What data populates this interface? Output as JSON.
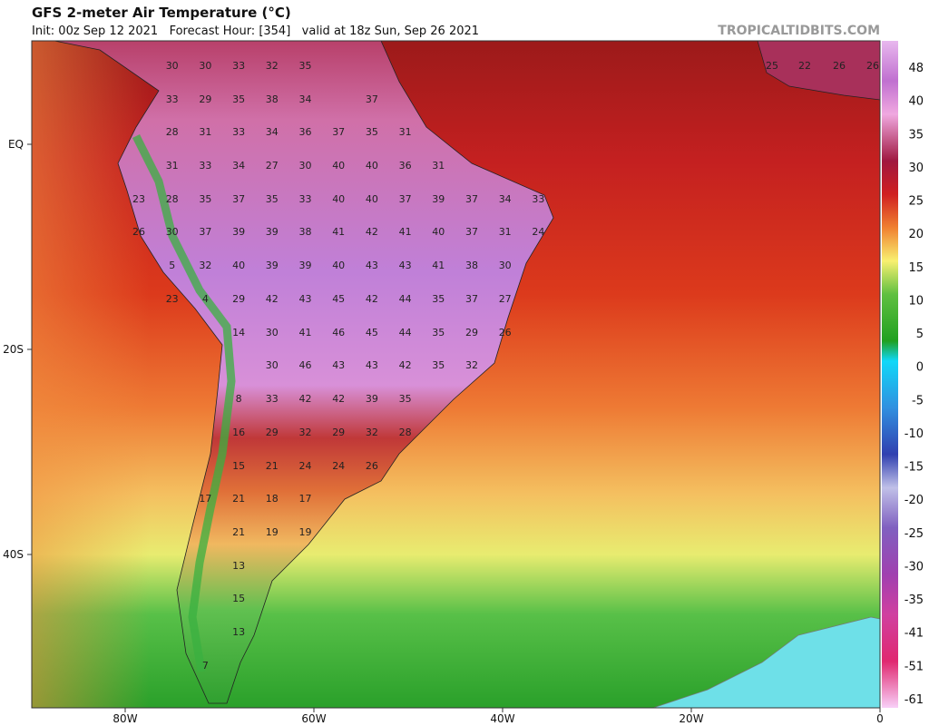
{
  "header": {
    "title": "GFS 2-meter Air Temperature (°C)",
    "info": "Init: 00z Sep 12 2021   Forecast Hour: [354]   valid at 18z Sun, Sep 26 2021",
    "site": "TROPICALTIDBITS.COM"
  },
  "map": {
    "lon_labels": [
      "80W",
      "60W",
      "40W",
      "20W",
      "0"
    ],
    "lat_labels": [
      "EQ",
      "20S",
      "40S"
    ],
    "temperatures": [
      30,
      30,
      33,
      32,
      35,
      25,
      22,
      26,
      26,
      33,
      29,
      35,
      38,
      34,
      37,
      28,
      31,
      33,
      34,
      36,
      37,
      35,
      31,
      31,
      33,
      34,
      27,
      30,
      40,
      40,
      36,
      31,
      23,
      28,
      35,
      37,
      35,
      33,
      40,
      40,
      37,
      39,
      37,
      34,
      33,
      26,
      30,
      37,
      39,
      39,
      38,
      41,
      42,
      41,
      40,
      37,
      31,
      24,
      5,
      32,
      40,
      39,
      39,
      40,
      43,
      43,
      41,
      38,
      30,
      23,
      4,
      29,
      42,
      43,
      45,
      42,
      44,
      35,
      37,
      27,
      14,
      30,
      41,
      46,
      45,
      44,
      35,
      29,
      26,
      30,
      46,
      43,
      43,
      42,
      35,
      32,
      8,
      33,
      42,
      42,
      39,
      35,
      16,
      29,
      32,
      29,
      32,
      28,
      15,
      21,
      24,
      24,
      26,
      17,
      21,
      18,
      17,
      21,
      19,
      19,
      13,
      15,
      13,
      7
    ]
  },
  "colorbar": {
    "labels": [
      48,
      40,
      35,
      30,
      25,
      20,
      15,
      10,
      5,
      0,
      -5,
      -10,
      -15,
      -20,
      -25,
      -30,
      -35,
      -41,
      -51,
      -61
    ]
  }
}
